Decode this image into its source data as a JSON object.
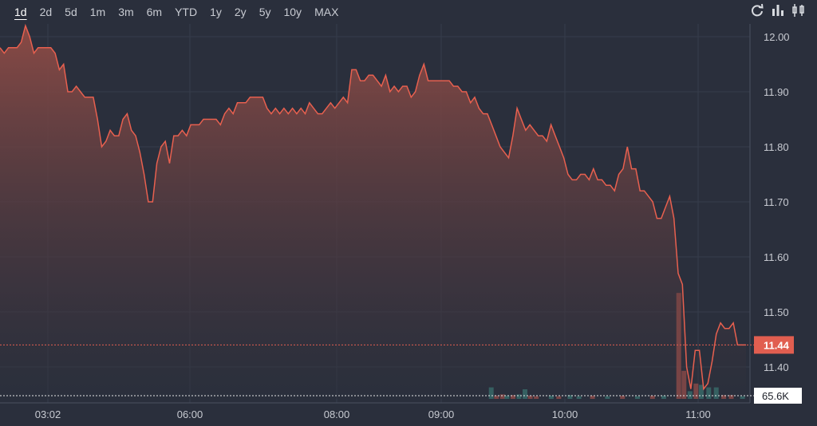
{
  "toolbar": {
    "ranges": [
      "1d",
      "2d",
      "5d",
      "1m",
      "3m",
      "6m",
      "YTD",
      "1y",
      "2y",
      "5y",
      "10y",
      "MAX"
    ],
    "active_range": "1d",
    "tools": [
      "refresh-icon",
      "bar-chart-icon",
      "candlestick-icon"
    ]
  },
  "colors": {
    "background": "#2a2f3c",
    "line": "#e8604f",
    "area_top": "#8a4a45",
    "volume_up": "#3f8f86",
    "volume_down": "#c85a4f",
    "grid": "#3a4050",
    "text": "#c8cbd2"
  },
  "chart_data": {
    "type": "area",
    "title": "",
    "xlabel": "",
    "ylabel": "",
    "ylim": [
      11.335,
      12.02
    ],
    "y_ticks": [
      "12.00",
      "11.90",
      "11.80",
      "11.70",
      "11.60",
      "11.50",
      "11.40"
    ],
    "x_ticks": [
      "03:02",
      "06:00",
      "08:00",
      "09:00",
      "10:00",
      "11:00"
    ],
    "last_price_label": "11.44",
    "last_price": 11.44,
    "volume_label": "65.6K",
    "grid": true,
    "series": [
      {
        "values": [
          11.98,
          11.97,
          11.98,
          11.98,
          11.98,
          11.99,
          12.02,
          12.0,
          11.97,
          11.98,
          11.98,
          11.98,
          11.98,
          11.97,
          11.94,
          11.95,
          11.9,
          11.9,
          11.91,
          11.9,
          11.89,
          11.89,
          11.89,
          11.85,
          11.8,
          11.81,
          11.83,
          11.82,
          11.82,
          11.85,
          11.86,
          11.83,
          11.82,
          11.79,
          11.75,
          11.7,
          11.7,
          11.77,
          11.8,
          11.81,
          11.77,
          11.82,
          11.82,
          11.83,
          11.82,
          11.84,
          11.84,
          11.84,
          11.85,
          11.85,
          11.85,
          11.85,
          11.84,
          11.86,
          11.87,
          11.86,
          11.88,
          11.88,
          11.88,
          11.89,
          11.89,
          11.89,
          11.89,
          11.87,
          11.86,
          11.87,
          11.86,
          11.87,
          11.86,
          11.87,
          11.86,
          11.87,
          11.86,
          11.88,
          11.87,
          11.86,
          11.86,
          11.87,
          11.88,
          11.87,
          11.88,
          11.89,
          11.88,
          11.94,
          11.94,
          11.92,
          11.92,
          11.93,
          11.93,
          11.92,
          11.91,
          11.93,
          11.9,
          11.91,
          11.9,
          11.91,
          11.91,
          11.89,
          11.9,
          11.93,
          11.95,
          11.92,
          11.92,
          11.92,
          11.92,
          11.92,
          11.92,
          11.91,
          11.91,
          11.9,
          11.9,
          11.88,
          11.89,
          11.87,
          11.86,
          11.86,
          11.84,
          11.82,
          11.8,
          11.79,
          11.78,
          11.82,
          11.87,
          11.85,
          11.83,
          11.84,
          11.83,
          11.82,
          11.82,
          11.81,
          11.84,
          11.82,
          11.8,
          11.78,
          11.75,
          11.74,
          11.74,
          11.75,
          11.75,
          11.74,
          11.76,
          11.74,
          11.74,
          11.73,
          11.73,
          11.72,
          11.75,
          11.76,
          11.8,
          11.76,
          11.76,
          11.72,
          11.72,
          11.71,
          11.7,
          11.67,
          11.67,
          11.69,
          11.71,
          11.67,
          11.57,
          11.55,
          11.4,
          11.36,
          11.43,
          11.43,
          11.36,
          11.37,
          11.41,
          11.46,
          11.48,
          11.47,
          11.47,
          11.48,
          11.44,
          11.44,
          11.44
        ]
      }
    ],
    "volume": [
      {
        "x": 0.655,
        "v": 0.9,
        "c": "up"
      },
      {
        "x": 0.662,
        "v": 0.25,
        "c": "down"
      },
      {
        "x": 0.67,
        "v": 0.35,
        "c": "down"
      },
      {
        "x": 0.676,
        "v": 0.25,
        "c": "up"
      },
      {
        "x": 0.684,
        "v": 0.3,
        "c": "down"
      },
      {
        "x": 0.692,
        "v": 0.35,
        "c": "up"
      },
      {
        "x": 0.7,
        "v": 0.75,
        "c": "up"
      },
      {
        "x": 0.707,
        "v": 0.25,
        "c": "down"
      },
      {
        "x": 0.715,
        "v": 0.2,
        "c": "down"
      },
      {
        "x": 0.735,
        "v": 0.25,
        "c": "up"
      },
      {
        "x": 0.745,
        "v": 0.2,
        "c": "down"
      },
      {
        "x": 0.76,
        "v": 0.3,
        "c": "up"
      },
      {
        "x": 0.772,
        "v": 0.2,
        "c": "up"
      },
      {
        "x": 0.79,
        "v": 0.25,
        "c": "down"
      },
      {
        "x": 0.81,
        "v": 0.2,
        "c": "up"
      },
      {
        "x": 0.83,
        "v": 0.25,
        "c": "down"
      },
      {
        "x": 0.85,
        "v": 0.2,
        "c": "up"
      },
      {
        "x": 0.87,
        "v": 0.25,
        "c": "down"
      },
      {
        "x": 0.885,
        "v": 0.25,
        "c": "up"
      },
      {
        "x": 0.905,
        "v": 8.3,
        "c": "down"
      },
      {
        "x": 0.912,
        "v": 2.2,
        "c": "down"
      },
      {
        "x": 0.92,
        "v": 0.6,
        "c": "up"
      },
      {
        "x": 0.928,
        "v": 1.2,
        "c": "down"
      },
      {
        "x": 0.935,
        "v": 1.1,
        "c": "up"
      },
      {
        "x": 0.945,
        "v": 0.9,
        "c": "up"
      },
      {
        "x": 0.955,
        "v": 0.9,
        "c": "up"
      },
      {
        "x": 0.965,
        "v": 0.3,
        "c": "down"
      },
      {
        "x": 0.975,
        "v": 0.3,
        "c": "down"
      },
      {
        "x": 0.99,
        "v": 0.2,
        "c": "up"
      }
    ]
  }
}
